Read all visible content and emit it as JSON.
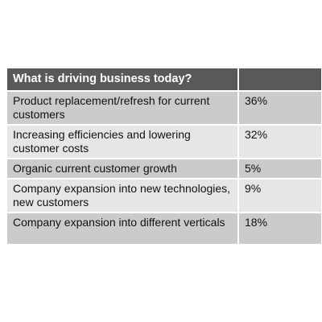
{
  "chart_data": {
    "type": "table",
    "title": "What is driving business today?",
    "columns": [
      "What is driving business today?",
      ""
    ],
    "rows": [
      {
        "label": "Product replacement/refresh for current customers",
        "value": "36%"
      },
      {
        "label": "Increasing efficiencies and lowering customer costs",
        "value": "32%"
      },
      {
        "label": "Organic current customer growth",
        "value": "5%"
      },
      {
        "label": "Company expansion into new technologies, new customers",
        "value": "9%"
      },
      {
        "label": "Company expansion into different verticals",
        "value": "18%"
      }
    ],
    "categories": [
      "Product replacement/refresh for current customers",
      "Increasing efficiencies and lowering customer costs",
      "Organic current customer growth",
      "Company expansion into new technologies, new customers",
      "Company expansion into different verticals"
    ],
    "values": [
      36,
      32,
      5,
      9,
      18
    ],
    "unit": "%"
  },
  "colors": {
    "header_bg": "#595959",
    "header_text": "#ffffff",
    "row_band_dark": "#cbcbcb",
    "row_band_light": "#e6e6e6",
    "text": "#111111"
  }
}
